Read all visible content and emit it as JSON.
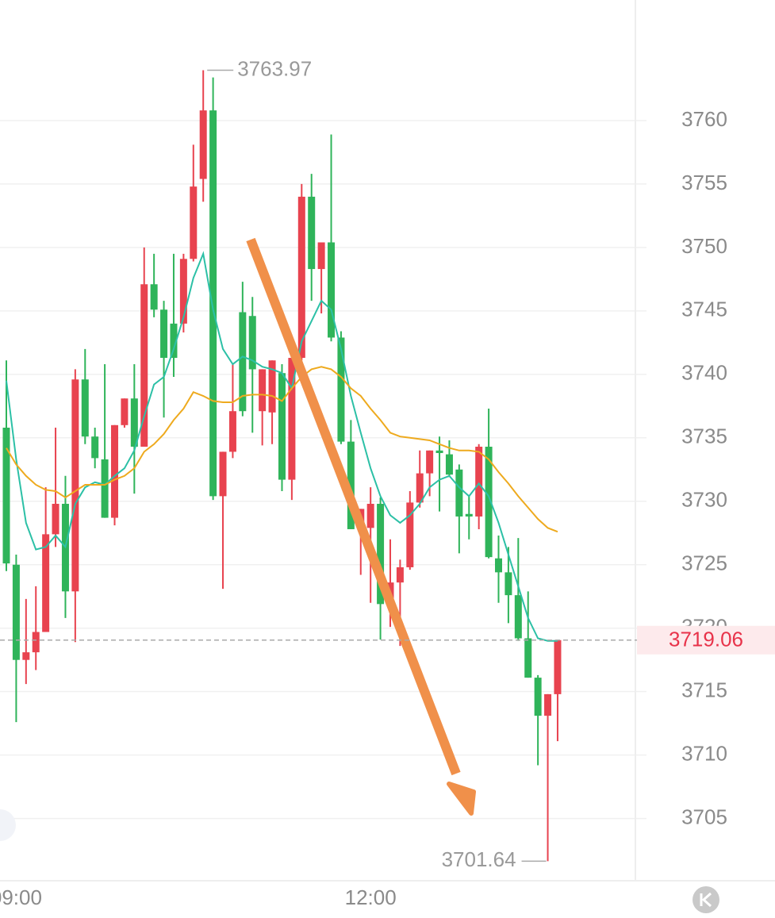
{
  "chart_data": {
    "type": "candlestick",
    "categories": [
      null,
      "09:00",
      null,
      null,
      null,
      null,
      null,
      null,
      null,
      null,
      null,
      null,
      null,
      null,
      null,
      null,
      null,
      null,
      null,
      null,
      null,
      null,
      null,
      null,
      null,
      null,
      null,
      null,
      null,
      null,
      null,
      null,
      null,
      null,
      null,
      null,
      null,
      "12:00",
      null,
      null,
      null,
      null,
      null,
      null,
      null,
      null,
      null,
      null,
      null,
      null,
      null,
      null,
      null,
      null,
      null,
      null,
      null
    ],
    "open": [
      3735.8,
      3725.0,
      3717.5,
      3718.1,
      3719.7,
      3727.4,
      3729.8,
      3722.9,
      3739.6,
      3735.1,
      3733.3,
      3728.7,
      3736.0,
      3738.1,
      3734.3,
      3747.1,
      3745.1,
      3744.0,
      3744.0,
      3749.1,
      3755.4,
      3760.8,
      3730.4,
      3733.9,
      3744.9,
      3744.6,
      3737.1,
      3737.0,
      3740.1,
      3731.7,
      3741.3,
      3754.0,
      3748.3,
      3750.4,
      3742.9,
      3734.7,
      3727.8,
      3727.9,
      3729.8,
      3721.9,
      3723.6,
      3724.8,
      3729.9,
      3732.2,
      3734.0,
      3733.7,
      3732.5,
      3729.0,
      3728.8,
      3734.3,
      3725.5,
      3724.4,
      3722.6,
      3719.2,
      3716.1,
      3713.1,
      3714.8
    ],
    "high": [
      3741.1,
      3725.8,
      3722.3,
      3723.3,
      3731.1,
      3735.8,
      3732.0,
      3740.4,
      3742.0,
      3735.8,
      3740.8,
      3736.0,
      3738.1,
      3740.8,
      3750.0,
      3749.5,
      3745.8,
      3749.5,
      3749.5,
      3758.1,
      3763.97,
      3763.4,
      3733.9,
      3740.8,
      3747.3,
      3746.1,
      3740.4,
      3741.1,
      3740.8,
      3742.0,
      3755.0,
      3755.8,
      3750.4,
      3758.9,
      3743.4,
      3736.4,
      3729.4,
      3731.1,
      3730.3,
      3727.0,
      3725.4,
      3730.8,
      3734.0,
      3734.0,
      3735.1,
      3734.8,
      3732.9,
      3730.4,
      3734.5,
      3737.3,
      3727.3,
      3726.4,
      3727.1,
      3722.9,
      3716.3,
      3714.8,
      3719.06
    ],
    "low": [
      3724.5,
      3712.6,
      3715.6,
      3716.7,
      3719.7,
      3726.4,
      3720.8,
      3718.9,
      3734.5,
      3732.6,
      3728.7,
      3728.1,
      3735.8,
      3730.6,
      3734.3,
      3744.5,
      3736.6,
      3739.8,
      3743.3,
      3748.9,
      3753.6,
      3730.1,
      3723.1,
      3733.4,
      3736.7,
      3735.4,
      3734.4,
      3734.5,
      3730.8,
      3730.1,
      3741.1,
      3745.8,
      3744.8,
      3742.6,
      3734.5,
      3727.8,
      3724.2,
      3722.0,
      3719.1,
      3720.1,
      3718.6,
      3724.6,
      3729.5,
      3730.4,
      3729.2,
      3731.9,
      3725.9,
      3727.0,
      3727.8,
      3725.5,
      3722.0,
      3720.4,
      3719.0,
      3716.1,
      3709.2,
      3701.64,
      3711.1
    ],
    "close": [
      3725.1,
      3717.5,
      3718.1,
      3719.7,
      3727.4,
      3729.8,
      3722.9,
      3739.6,
      3735.1,
      3733.4,
      3728.7,
      3736.0,
      3738.1,
      3734.3,
      3747.1,
      3745.1,
      3741.3,
      3741.3,
      3749.1,
      3754.8,
      3760.8,
      3730.4,
      3733.9,
      3737.1,
      3737.1,
      3740.4,
      3740.4,
      3741.1,
      3731.7,
      3741.3,
      3754.0,
      3748.3,
      3750.4,
      3742.9,
      3734.7,
      3727.8,
      3729.4,
      3729.8,
      3721.9,
      3723.6,
      3724.8,
      3729.9,
      3732.2,
      3734.0,
      3733.8,
      3732.1,
      3728.8,
      3728.8,
      3734.3,
      3725.6,
      3724.4,
      3722.6,
      3719.2,
      3716.1,
      3713.1,
      3714.8,
      3719.06
    ],
    "up_color": "#e8434f",
    "down_color": "#2fb45a",
    "series": [
      {
        "color": "#2cc0a6",
        "values": [
          3739.5,
          3733.3,
          3728.3,
          3726.2,
          3726.4,
          3727.3,
          3726.4,
          3729.8,
          3731.1,
          3731.5,
          3731.3,
          3732.0,
          3732.6,
          3734.0,
          3736.7,
          3739.2,
          3739.8,
          3742.0,
          3744.5,
          3747.6,
          3749.5,
          3745.1,
          3742.0,
          3740.8,
          3741.4,
          3741.1,
          3740.6,
          3740.4,
          3740.1,
          3738.9,
          3742.6,
          3744.2,
          3745.8,
          3745.1,
          3742.0,
          3738.3,
          3735.4,
          3732.6,
          3730.4,
          3728.9,
          3728.3,
          3728.9,
          3729.8,
          3731.1,
          3731.7,
          3732.0,
          3731.1,
          3730.4,
          3731.4,
          3730.4,
          3728.3,
          3725.8,
          3723.3,
          3720.8,
          3719.2,
          3719.0,
          3719.0
        ]
      },
      {
        "color": "#eeaa1e",
        "values": [
          3734.2,
          3732.9,
          3732.0,
          3731.3,
          3730.9,
          3730.8,
          3730.3,
          3730.8,
          3731.3,
          3731.3,
          3731.3,
          3731.7,
          3732.0,
          3732.6,
          3733.9,
          3734.5,
          3735.3,
          3736.4,
          3737.3,
          3738.6,
          3738.3,
          3737.9,
          3737.8,
          3737.8,
          3738.3,
          3738.4,
          3738.4,
          3738.3,
          3737.9,
          3738.9,
          3739.8,
          3740.4,
          3740.6,
          3740.4,
          3739.8,
          3738.9,
          3738.3,
          3737.3,
          3736.4,
          3735.4,
          3735.1,
          3735.0,
          3734.9,
          3734.8,
          3734.5,
          3734.2,
          3734.0,
          3734.0,
          3733.9,
          3733.3,
          3732.3,
          3731.4,
          3730.4,
          3729.5,
          3728.6,
          3727.9,
          3727.6
        ]
      }
    ],
    "ylim": [
      3700.1,
      3769.5
    ],
    "yticks": [
      3705,
      3710,
      3715,
      3720,
      3725,
      3730,
      3735,
      3740,
      3745,
      3750,
      3755,
      3760
    ],
    "grid": true
  }
}
